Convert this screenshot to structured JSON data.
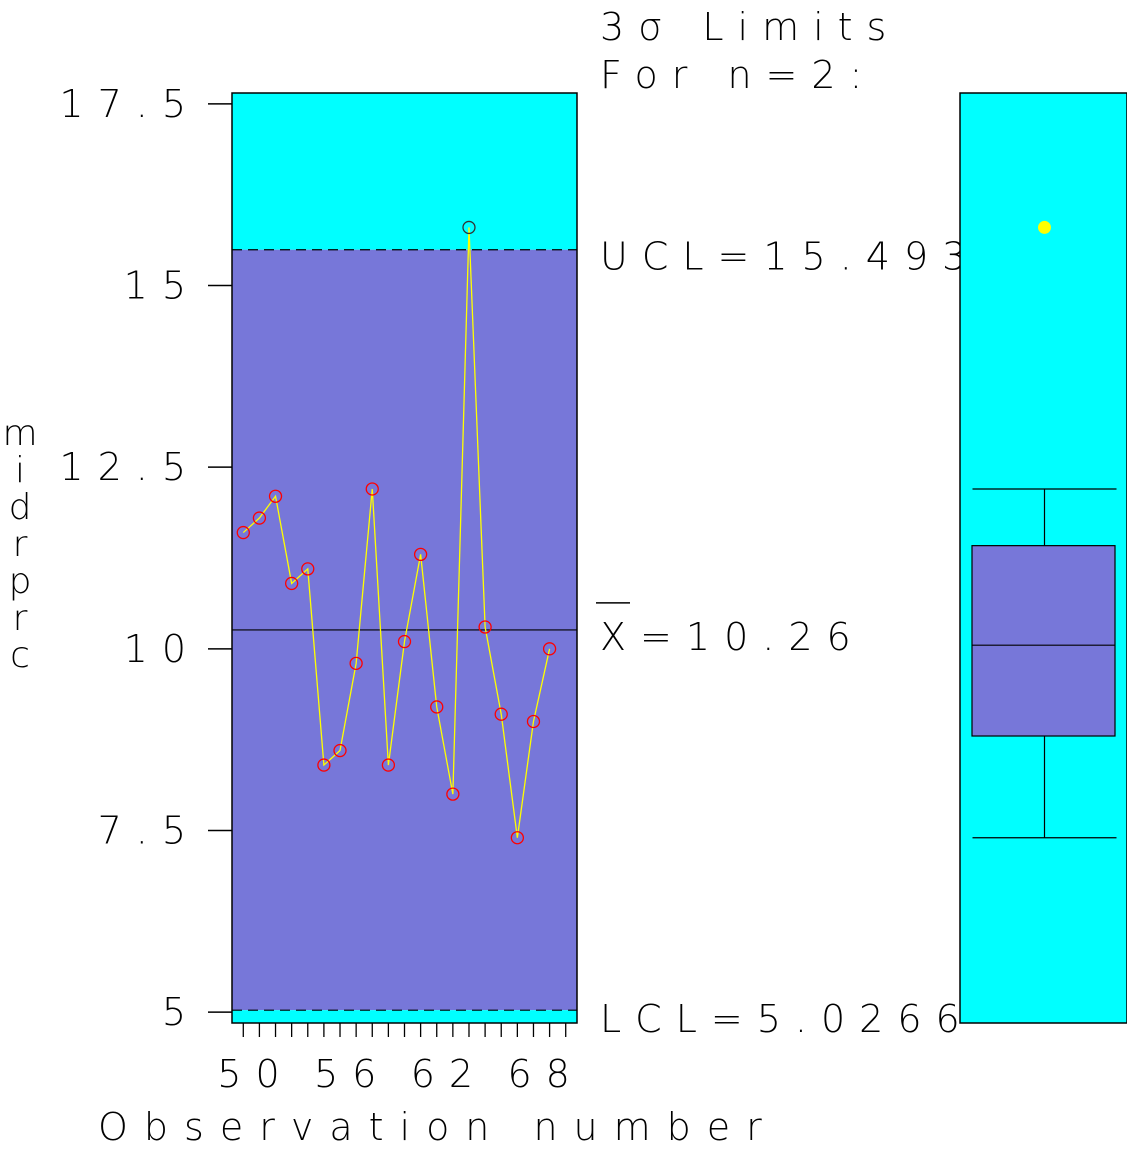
{
  "chart_data": {
    "type": "line",
    "chart_kind": "individuals control chart with boxplot",
    "header_line1": "3σ Limits",
    "header_line2": "For n=2:",
    "ylabel": "midrprc",
    "xlabel": "Observation number",
    "ylim": [
      4.85,
      17.65
    ],
    "y_ticks": [
      5,
      7.5,
      10,
      12.5,
      15,
      17.5
    ],
    "y_tick_labels": [
      "5",
      "7.5",
      "10",
      "12.5",
      "15",
      "17.5"
    ],
    "xlim": [
      49.3,
      70.7
    ],
    "x_ticks": [
      50,
      51,
      52,
      53,
      54,
      55,
      56,
      57,
      58,
      59,
      60,
      61,
      62,
      63,
      64,
      65,
      66,
      67,
      68,
      69,
      70
    ],
    "x_tick_labels": [
      {
        "x": 50,
        "label": "50"
      },
      {
        "x": 56,
        "label": "56"
      },
      {
        "x": 62,
        "label": "62"
      },
      {
        "x": 68,
        "label": "68"
      }
    ],
    "x": [
      50,
      51,
      52,
      53,
      54,
      55,
      56,
      57,
      58,
      59,
      60,
      61,
      62,
      63,
      64,
      65,
      66,
      67,
      68,
      69
    ],
    "values": [
      11.6,
      11.8,
      12.1,
      10.9,
      11.1,
      8.4,
      8.6,
      9.8,
      12.2,
      8.4,
      10.1,
      11.3,
      9.2,
      8.0,
      15.8,
      10.3,
      9.1,
      7.4,
      9.0,
      10.0
    ],
    "ucl": 15.493,
    "lcl": 5.0266,
    "center": 10.26,
    "ucl_label": "UCL=15.493",
    "lcl_label": "LCL=5.0266",
    "center_label_symbol": "X",
    "center_label_value": "=10.26",
    "out_of_control_index": 14,
    "boxplot": {
      "min": 7.4,
      "q1": 8.8,
      "median": 10.05,
      "q3": 11.42,
      "max": 12.2,
      "outliers": [
        15.8
      ]
    },
    "colors": {
      "zone_outside": "#00ffff",
      "zone_inside": "#7777d9",
      "series_line": "#ffff00",
      "marker": "#ff0000",
      "marker_out": "#333333",
      "outlier_dot": "#ffff00",
      "box_fill": "#7777d9"
    }
  }
}
